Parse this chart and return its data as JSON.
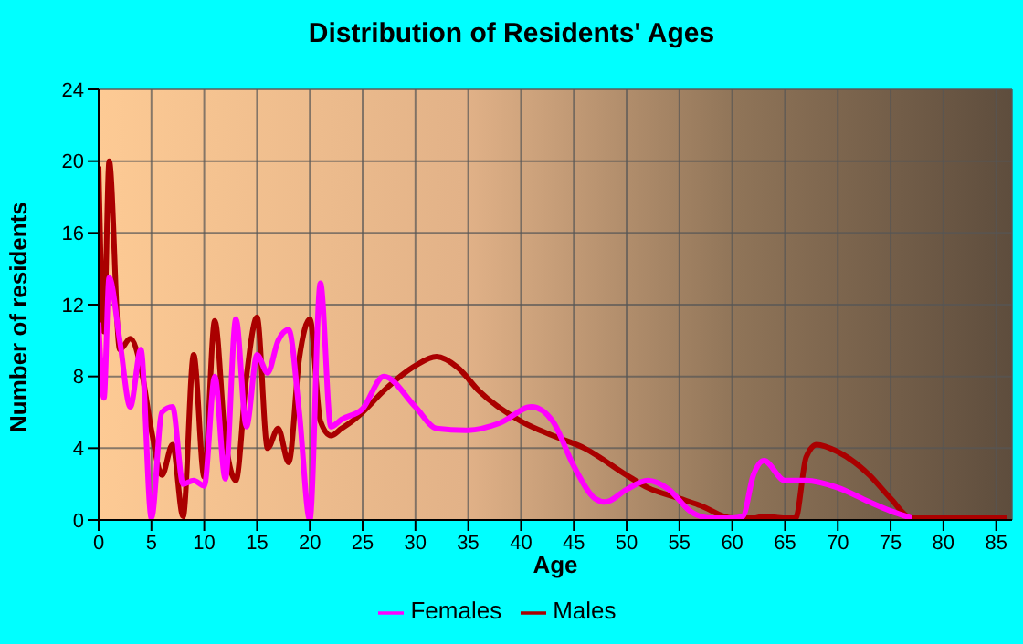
{
  "chart_data": {
    "type": "line",
    "title": "Distribution of Residents' Ages",
    "xlabel": "Age",
    "ylabel": "Number of residents",
    "xlim": [
      0,
      86.5
    ],
    "xticks": [
      0,
      5,
      10,
      15,
      20,
      25,
      30,
      35,
      40,
      45,
      50,
      55,
      60,
      65,
      70,
      75,
      80,
      85
    ],
    "ylim": [
      0,
      24
    ],
    "yticks": [
      0,
      4,
      8,
      12,
      16,
      20,
      24
    ],
    "grid": true,
    "legend": "bottom",
    "marker": "none",
    "line_style": "solid",
    "series": [
      {
        "name": "Males",
        "color": "#aa0000",
        "x": [
          0,
          0.5,
          1,
          2,
          3,
          4,
          5,
          6,
          7,
          8,
          9,
          10,
          11,
          12,
          13,
          14,
          15,
          16,
          17,
          18,
          19,
          20,
          21,
          22,
          23,
          24,
          25,
          27,
          30,
          32,
          34,
          36,
          40,
          43,
          46,
          50,
          52,
          55,
          57,
          60,
          62,
          63,
          65,
          66,
          67,
          68,
          70,
          73,
          75,
          77,
          80,
          85,
          86
        ],
        "values": [
          19.7,
          10.5,
          20,
          9.5,
          10.1,
          8.5,
          5,
          2.5,
          4.2,
          0.2,
          9.2,
          2.4,
          11.1,
          4.5,
          2.2,
          8,
          11.3,
          4,
          5.1,
          3.2,
          9,
          11.2,
          5.5,
          4.7,
          5.1,
          5.5,
          6,
          7.2,
          8.6,
          9.1,
          8.5,
          7.2,
          5.5,
          4.7,
          4,
          2.5,
          1.8,
          1.2,
          0.8,
          0.1,
          0.1,
          0.2,
          0.1,
          0.1,
          3.5,
          4.2,
          3.8,
          2.5,
          1.2,
          0.1,
          0.1,
          0.1,
          0.1
        ]
      },
      {
        "name": "Females",
        "color": "#ff00ff",
        "x": [
          0,
          0.5,
          1,
          2,
          3,
          4,
          5,
          6,
          7,
          8,
          9,
          10,
          11,
          12,
          13,
          14,
          15,
          16,
          17,
          18,
          19,
          20,
          21,
          22,
          23,
          25,
          27,
          30,
          32,
          35,
          38,
          41,
          43,
          45,
          47,
          48,
          50,
          52,
          54,
          56,
          58,
          60,
          61,
          62,
          63,
          65,
          67,
          70,
          73,
          75,
          77
        ],
        "values": [
          11,
          6.8,
          13.5,
          10,
          6.3,
          9.5,
          0.1,
          6,
          6.3,
          2,
          2.2,
          1.9,
          8,
          2.3,
          11.2,
          5.2,
          9.2,
          8.2,
          10,
          10.6,
          6,
          0,
          13.2,
          5.2,
          5.6,
          6.2,
          8,
          6.3,
          5.1,
          5,
          5.4,
          6.3,
          5.5,
          3,
          1.2,
          1,
          1.7,
          2.2,
          1.7,
          0.5,
          0.1,
          0.1,
          0.2,
          2.5,
          3.3,
          2.2,
          2.2,
          1.8,
          1,
          0.5,
          0.1
        ]
      }
    ]
  }
}
